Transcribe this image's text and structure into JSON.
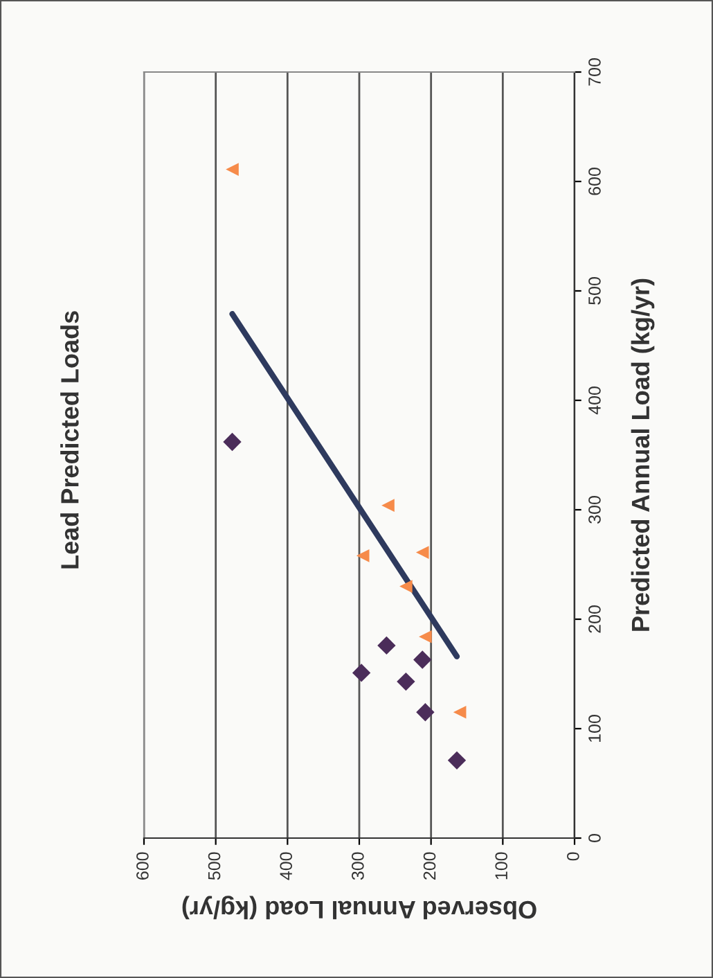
{
  "chart_data": {
    "type": "scatter",
    "title": "Lead Predicted Loads",
    "xlabel": "Observed Annual Load (kg/yr)",
    "ylabel": "Predicted Annual Load (kg/yr)",
    "xlim": [
      600,
      0
    ],
    "xticks": [
      600,
      500,
      400,
      300,
      200,
      100,
      0
    ],
    "ylim": [
      0,
      700
    ],
    "yticks": [
      0,
      100,
      200,
      300,
      400,
      500,
      600,
      700
    ],
    "grid": "x",
    "series": [
      {
        "marker": "diamond",
        "color": "#4b2d5a",
        "x": [
          477,
          262,
          212,
          297,
          235,
          208,
          164
        ],
        "values": [
          362,
          176,
          163,
          151,
          143,
          115,
          71
        ]
      },
      {
        "marker": "triangle",
        "color": "#f68b4a",
        "x": [
          477,
          260,
          295,
          212,
          235,
          208,
          160
        ],
        "values": [
          611,
          304,
          258,
          261,
          230,
          184,
          115
        ]
      },
      {
        "type": "line",
        "marker": "none",
        "color": "#2e3a5e",
        "x": [
          477,
          164
        ],
        "values": [
          479,
          166
        ]
      }
    ]
  }
}
